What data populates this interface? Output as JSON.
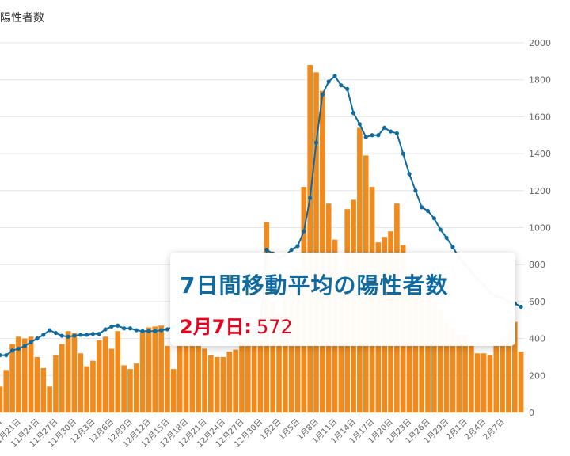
{
  "chart_data": {
    "type": "bar",
    "y_title": "陽性者数",
    "yticks": [
      0,
      200,
      400,
      600,
      800,
      1000,
      1200,
      1400,
      1600,
      1800,
      2000
    ],
    "ylim": [
      0,
      2000
    ],
    "grid": true,
    "bar_color": "#f08a1c",
    "line_color": "#0e6aa0",
    "x_tick_labels": [
      "11月18日",
      "11月21日",
      "11月24日",
      "11月27日",
      "11月30日",
      "12月3日",
      "12月6日",
      "12月9日",
      "12月12日",
      "12月15日",
      "12月18日",
      "12月21日",
      "12月24日",
      "12月27日",
      "12月30日",
      "1月2日",
      "1月5日",
      "1月8日",
      "1月11日",
      "1月14日",
      "1月17日",
      "1月20日",
      "1月23日",
      "1月26日",
      "1月29日",
      "2月1日",
      "2月4日",
      "2月7日"
    ],
    "series": [
      {
        "name": "陽性者数",
        "type": "bar",
        "values": [
          140,
          230,
          370,
          410,
          400,
          410,
          300,
          240,
          140,
          310,
          370,
          440,
          430,
          320,
          250,
          280,
          390,
          410,
          345,
          440,
          255,
          235,
          265,
          440,
          460,
          465,
          470,
          360,
          235,
          380,
          390,
          390,
          360,
          345,
          310,
          300,
          300,
          330,
          340,
          390,
          390,
          400,
          400,
          1030,
          600,
          540,
          610,
          750,
          780,
          1220,
          1880,
          1840,
          1740,
          1130,
          935,
          720,
          1100,
          1150,
          1540,
          1390,
          1220,
          920,
          950,
          980,
          1130,
          905,
          700,
          650,
          640,
          620,
          600,
          560,
          500,
          460,
          420,
          420,
          370,
          320,
          320,
          310,
          360,
          400,
          430,
          490,
          330
        ]
      },
      {
        "name": "7日間移動平均の陽性者数",
        "type": "line",
        "values": [
          310,
          310,
          335,
          345,
          360,
          380,
          400,
          420,
          445,
          430,
          415,
          410,
          415,
          420,
          420,
          425,
          425,
          450,
          465,
          470,
          455,
          455,
          445,
          440,
          440,
          440,
          445,
          450,
          465,
          480,
          490,
          445,
          440,
          430,
          420,
          410,
          410,
          415,
          415,
          425,
          430,
          440,
          460,
          880,
          860,
          840,
          850,
          880,
          900,
          980,
          1160,
          1460,
          1720,
          1790,
          1820,
          1770,
          1750,
          1620,
          1560,
          1490,
          1500,
          1500,
          1540,
          1520,
          1510,
          1400,
          1290,
          1200,
          1110,
          1090,
          1050,
          990,
          945,
          895,
          840,
          800,
          760,
          720,
          690,
          650,
          630,
          620,
          600,
          590,
          572
        ]
      }
    ],
    "tooltip": {
      "series_name": "7日間移動平均の陽性者数",
      "date": "2月7日",
      "separator": ":",
      "value": "572"
    }
  }
}
